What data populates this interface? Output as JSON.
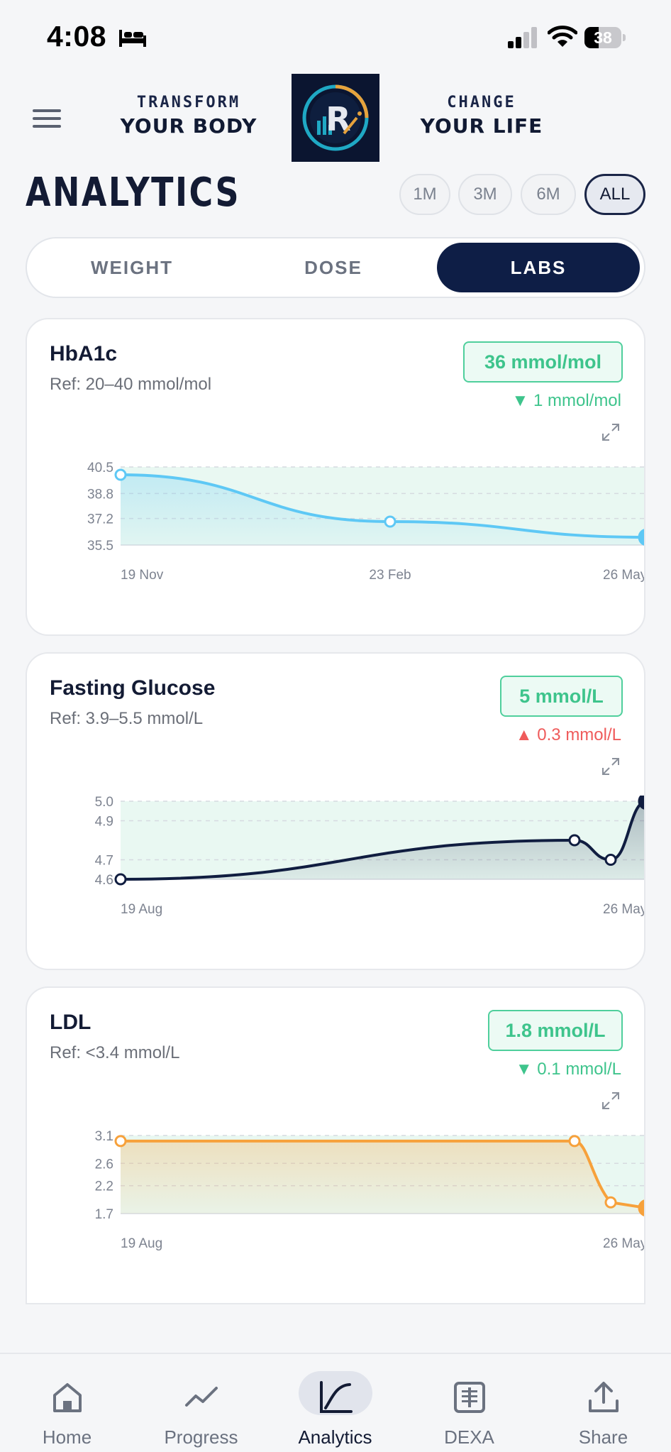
{
  "status_bar": {
    "time": "4:08",
    "battery_level": "38",
    "battery_fraction": 0.38,
    "icons": [
      "bed-icon",
      "signal-icon",
      "wifi-icon",
      "battery-icon"
    ]
  },
  "header": {
    "slogan_left_line1": "TRANSFORM",
    "slogan_left_line2": "YOUR BODY",
    "slogan_right_line1": "CHANGE",
    "slogan_right_line2": "YOUR LIFE",
    "logo_letter": "R",
    "menu_icon": "menu-icon"
  },
  "page": {
    "title": "ANALYTICS",
    "ranges": [
      "1M",
      "3M",
      "6M",
      "ALL"
    ],
    "selected_range": "ALL"
  },
  "tabs": [
    "WEIGHT",
    "DOSE",
    "LABS"
  ],
  "selected_tab": "LABS",
  "cards": [
    {
      "title": "HbA1c",
      "ref": "Ref: 20–40 mmol/mol",
      "value": "36 mmol/mol",
      "delta": "1 mmol/mol",
      "delta_direction": "down",
      "delta_color": "#3ec48c"
    },
    {
      "title": "Fasting Glucose",
      "ref": "Ref: 3.9–5.5 mmol/L",
      "value": "5 mmol/L",
      "delta": "0.3 mmol/L",
      "delta_direction": "up",
      "delta_color": "#ef5b5b"
    },
    {
      "title": "LDL",
      "ref": "Ref: <3.4 mmol/L",
      "value": "1.8 mmol/L",
      "delta": "0.1 mmol/L",
      "delta_direction": "down",
      "delta_color": "#3ec48c"
    }
  ],
  "chart_data": [
    {
      "type": "area",
      "title": "HbA1c",
      "y_ticks": [
        "40.5",
        "38.8",
        "37.2",
        "35.5"
      ],
      "ylim": [
        35.5,
        40.5
      ],
      "x_tick_labels": [
        "19 Nov",
        "23 Feb",
        "26 May"
      ],
      "series": [
        {
          "x": [
            "19 Nov",
            "23 Feb",
            "26 May"
          ],
          "values": [
            40,
            37,
            36
          ],
          "color": "#5ec8f5"
        }
      ],
      "grid": true,
      "reference_band_color": "#e9f8f2"
    },
    {
      "type": "area",
      "title": "Fasting Glucose",
      "y_ticks": [
        "5.0",
        "4.9",
        "4.7",
        "4.6"
      ],
      "ylim": [
        4.6,
        5.0
      ],
      "x_tick_labels": [
        "19 Aug",
        "26 May"
      ],
      "series": [
        {
          "x": [
            "19 Aug",
            "",
            "",
            "26 May"
          ],
          "values": [
            4.6,
            4.8,
            4.7,
            5.0
          ],
          "color": "#101d40"
        }
      ],
      "grid": true,
      "reference_band_color": "#e9f8f2"
    },
    {
      "type": "area",
      "title": "LDL",
      "y_ticks": [
        "3.1",
        "2.6",
        "2.2",
        "1.7"
      ],
      "ylim": [
        1.7,
        3.1
      ],
      "x_tick_labels": [
        "19 Aug",
        "26 May"
      ],
      "series": [
        {
          "x": [
            "19 Aug",
            "",
            "",
            "26 May"
          ],
          "values": [
            3.0,
            3.0,
            1.9,
            1.8
          ],
          "color": "#f7a13b"
        }
      ],
      "grid": true,
      "reference_band_color": "#e9f8f2"
    }
  ],
  "bottom_nav": [
    {
      "label": "Home",
      "icon": "home-icon"
    },
    {
      "label": "Progress",
      "icon": "progress-icon"
    },
    {
      "label": "Analytics",
      "icon": "analytics-icon"
    },
    {
      "label": "DEXA",
      "icon": "dexa-icon"
    },
    {
      "label": "Share",
      "icon": "share-icon"
    }
  ],
  "active_nav": "Analytics"
}
